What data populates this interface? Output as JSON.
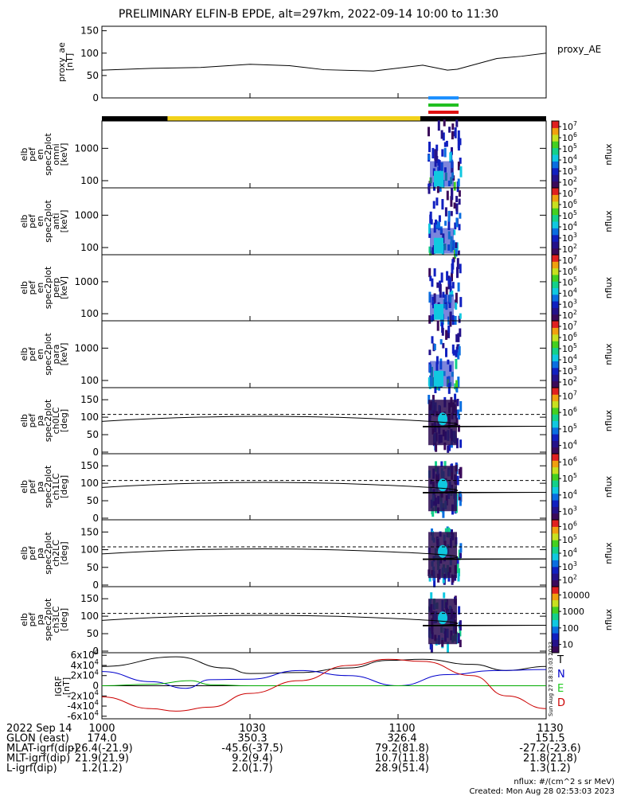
{
  "title": "PRELIMINARY ELFIN-B EPDE, alt=297km, 2022-09-14 10:00 to 11:30",
  "chart_data": [
    {
      "type": "line",
      "panel": "proxy_ae",
      "ylabel_lines": [
        "proxy_ae",
        "[nT]"
      ],
      "legend": "proxy_AE",
      "yticks": [
        "0",
        "50",
        "100",
        "150"
      ],
      "ylim": [
        0,
        160
      ],
      "x_minutes": [
        0,
        10,
        20,
        30,
        38,
        45,
        55,
        65,
        70,
        72,
        80,
        85,
        90
      ],
      "values": [
        62,
        66,
        68,
        75,
        72,
        63,
        60,
        73,
        62,
        64,
        88,
        93,
        100
      ]
    },
    {
      "type": "heatmap",
      "panel": "omni",
      "ylabel_lines": [
        "elb",
        "pef",
        "en",
        "spec2plot",
        "omni",
        "[keV]"
      ],
      "yticks": [
        "100",
        "1000"
      ],
      "colorbar_label": "nflux",
      "colorbar_ticks": [
        "10^2",
        "10^3",
        "10^4",
        "10^5",
        "10^6",
        "10^7"
      ]
    },
    {
      "type": "heatmap",
      "panel": "anti",
      "ylabel_lines": [
        "elb",
        "pef",
        "en",
        "spec2plot",
        "anti",
        "[keV]"
      ],
      "yticks": [
        "100",
        "1000"
      ],
      "colorbar_label": "nflux",
      "colorbar_ticks": [
        "10^2",
        "10^3",
        "10^4",
        "10^5",
        "10^6",
        "10^7"
      ]
    },
    {
      "type": "heatmap",
      "panel": "perp",
      "ylabel_lines": [
        "elb",
        "pef",
        "en",
        "spec2plot",
        "perp",
        "[keV]"
      ],
      "yticks": [
        "100",
        "1000"
      ],
      "colorbar_label": "nflux",
      "colorbar_ticks": [
        "10^2",
        "10^3",
        "10^4",
        "10^5",
        "10^6",
        "10^7"
      ]
    },
    {
      "type": "heatmap",
      "panel": "para",
      "ylabel_lines": [
        "elb",
        "pef",
        "en",
        "spec2plot",
        "para",
        "[keV]"
      ],
      "yticks": [
        "100",
        "1000"
      ],
      "colorbar_label": "nflux",
      "colorbar_ticks": [
        "10^2",
        "10^3",
        "10^4",
        "10^5",
        "10^6",
        "10^7"
      ]
    },
    {
      "type": "heatmap",
      "panel": "ch0LC",
      "ylabel_lines": [
        "elb",
        "pef",
        "pa",
        "spec2plot",
        "ch0LC",
        "[deg]"
      ],
      "yticks": [
        "0",
        "50",
        "100",
        "150"
      ],
      "colorbar_label": "nflux",
      "colorbar_ticks": [
        "10^4",
        "10^5",
        "10^6",
        "10^7"
      ]
    },
    {
      "type": "heatmap",
      "panel": "ch1LC",
      "ylabel_lines": [
        "elb",
        "pef",
        "pa",
        "spec2plot",
        "ch1LC",
        "[deg]"
      ],
      "yticks": [
        "0",
        "50",
        "100",
        "150"
      ],
      "colorbar_label": "nflux",
      "colorbar_ticks": [
        "10^3",
        "10^4",
        "10^5",
        "10^6"
      ]
    },
    {
      "type": "heatmap",
      "panel": "ch2LC",
      "ylabel_lines": [
        "elb",
        "pef",
        "pa",
        "spec2plot",
        "ch2LC",
        "[deg]"
      ],
      "yticks": [
        "0",
        "50",
        "100",
        "150"
      ],
      "colorbar_label": "nflux",
      "colorbar_ticks": [
        "10^2",
        "10^3",
        "10^4",
        "10^5",
        "10^6"
      ]
    },
    {
      "type": "heatmap",
      "panel": "ch3LC",
      "ylabel_lines": [
        "elb",
        "pef",
        "pa",
        "spec2plot",
        "ch3LC",
        "[deg]"
      ],
      "yticks": [
        "0",
        "50",
        "100",
        "150"
      ],
      "colorbar_label": "nflux",
      "colorbar_ticks": [
        "10",
        "100",
        "1000",
        "10000"
      ]
    },
    {
      "type": "line",
      "panel": "IGRF",
      "ylabel_lines": [
        "IGRF",
        "[nT]"
      ],
      "yticks": [
        "-6x10^4",
        "-4x10^4",
        "-2x10^4",
        "0",
        "2x10^4",
        "4x10^4",
        "6x10^4"
      ],
      "ylim": [
        -65000,
        65000
      ],
      "legend": [
        "T",
        "N",
        "E",
        "D"
      ],
      "series": [
        {
          "name": "T",
          "color": "#000000",
          "x_minutes": [
            0,
            15,
            25,
            30,
            40,
            50,
            58,
            65,
            75,
            82,
            90
          ],
          "values": [
            38000,
            57000,
            35000,
            24000,
            26000,
            35000,
            50000,
            52000,
            42000,
            30000,
            38000
          ]
        },
        {
          "name": "N",
          "color": "#0000cc",
          "x_minutes": [
            0,
            10,
            17,
            22,
            30,
            40,
            50,
            60,
            70,
            80,
            90
          ],
          "values": [
            28000,
            8000,
            -5000,
            12000,
            13000,
            30000,
            20000,
            0,
            22000,
            30000,
            32000
          ]
        },
        {
          "name": "E",
          "color": "#00aa00",
          "x_minutes": [
            0,
            10,
            18,
            22,
            30,
            45,
            60,
            75,
            90
          ],
          "values": [
            0,
            3000,
            10000,
            2000,
            0,
            0,
            0,
            0,
            0
          ]
        },
        {
          "name": "D",
          "color": "#cc0000",
          "x_minutes": [
            0,
            10,
            15,
            22,
            30,
            40,
            50,
            58,
            65,
            75,
            82,
            90
          ],
          "values": [
            -22000,
            -45000,
            -50000,
            -42000,
            -15000,
            10000,
            40000,
            52000,
            48000,
            20000,
            -20000,
            -45000
          ]
        }
      ]
    }
  ],
  "xticks": [
    "1000",
    "1030",
    "1100",
    "1130"
  ],
  "footer": {
    "rows": [
      {
        "label": "2022 Sep 14",
        "vals": [
          "1000",
          "1030",
          "1100",
          "1130"
        ]
      },
      {
        "label": "GLON (east)",
        "vals": [
          "174.0",
          "350.3",
          "326.4",
          "151.5"
        ]
      },
      {
        "label": "MLAT-igrf(dip)",
        "vals": [
          "-26.4(-21.9)",
          "-45.6(-37.5)",
          "79.2(81.8)",
          "-27.2(-23.6)"
        ]
      },
      {
        "label": "MLT-igrf(dip)",
        "vals": [
          "21.9(21.9)",
          "9.2(9.4)",
          "10.7(11.8)",
          "21.8(21.8)"
        ]
      },
      {
        "label": "L-igrf(dip)",
        "vals": [
          "1.2(1.2)",
          "2.0(1.7)",
          "28.9(51.4)",
          "1.3(1.2)"
        ]
      }
    ],
    "units": "nflux: #/(cm^2 s sr MeV)",
    "created": "Created: Mon Aug 28 02:53:03 2023",
    "stamp": "Sun Aug 27 18:33:03 2023"
  }
}
